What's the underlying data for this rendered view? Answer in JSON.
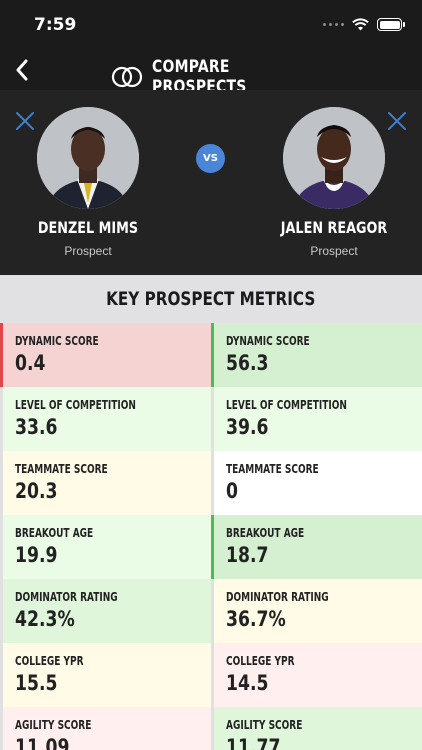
{
  "status_bar": {
    "time": "7:59"
  },
  "nav": {
    "title": "COMPARE PROSPECTS"
  },
  "compare": {
    "vs_label": "VS",
    "left": {
      "name": "DENZEL MIMS",
      "role": "Prospect"
    },
    "right": {
      "name": "JALEN REAGOR",
      "role": "Prospect"
    }
  },
  "metrics": {
    "title": "KEY PROSPECT METRICS",
    "rows": [
      {
        "left": {
          "label": "DYNAMIC SCORE",
          "value": "0.4"
        },
        "right": {
          "label": "DYNAMIC SCORE",
          "value": "56.3"
        }
      },
      {
        "left": {
          "label": "LEVEL OF COMPETITION",
          "value": "33.6"
        },
        "right": {
          "label": "LEVEL OF COMPETITION",
          "value": "39.6"
        }
      },
      {
        "left": {
          "label": "TEAMMATE SCORE",
          "value": "20.3"
        },
        "right": {
          "label": "TEAMMATE SCORE",
          "value": "0"
        }
      },
      {
        "left": {
          "label": "BREAKOUT AGE",
          "value": "19.9"
        },
        "right": {
          "label": "BREAKOUT AGE",
          "value": "18.7"
        }
      },
      {
        "left": {
          "label": "DOMINATOR RATING",
          "value": "42.3%"
        },
        "right": {
          "label": "DOMINATOR RATING",
          "value": "36.7%"
        }
      },
      {
        "left": {
          "label": "COLLEGE YPR",
          "value": "15.5"
        },
        "right": {
          "label": "COLLEGE YPR",
          "value": "14.5"
        }
      },
      {
        "left": {
          "label": "AGILITY SCORE",
          "value": "11.09"
        },
        "right": {
          "label": "AGILITY SCORE",
          "value": "11.77"
        }
      }
    ]
  },
  "colors": {
    "accent_blue": "#4a86d8",
    "bad": "#e04848",
    "good": "#4dbb4f",
    "header_dark": "#1b1b1b"
  }
}
